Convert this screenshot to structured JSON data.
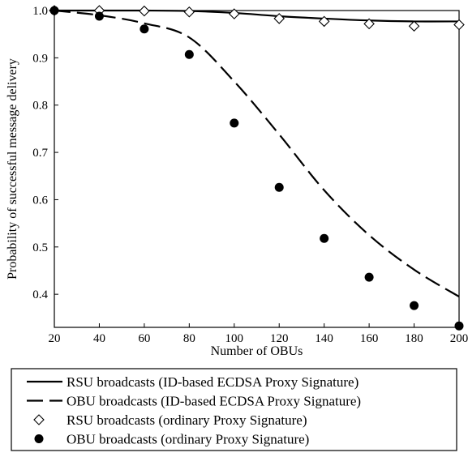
{
  "chart_data": {
    "type": "line",
    "xlabel": "Number of OBUs",
    "ylabel": "Probability of successful message delivery",
    "xlim": [
      20,
      200
    ],
    "ylim": [
      0.33,
      1.0
    ],
    "x_ticks": [
      20,
      40,
      60,
      80,
      100,
      120,
      140,
      160,
      180,
      200
    ],
    "y_ticks": [
      0.4,
      0.5,
      0.6,
      0.7,
      0.8,
      0.9,
      1.0
    ],
    "x_tick_labels": [
      "20",
      "40",
      "60",
      "80",
      "100",
      "120",
      "140",
      "160",
      "180",
      "200"
    ],
    "y_tick_labels": [
      "0.4",
      "0.5",
      "0.6",
      "0.7",
      "0.8",
      "0.9",
      "1.0"
    ],
    "grid": false,
    "legend_position": "below",
    "series": [
      {
        "name": "RSU broadcasts (ID-based ECDSA Proxy Signature)",
        "style": "solid-line",
        "x": [
          20,
          40,
          60,
          80,
          100,
          120,
          140,
          160,
          180,
          200
        ],
        "y": [
          1.0,
          1.0,
          1.0,
          0.999,
          0.995,
          0.988,
          0.983,
          0.979,
          0.977,
          0.977
        ]
      },
      {
        "name": "OBU broadcasts (ID-based ECDSA Proxy Signature)",
        "style": "dashed-line",
        "x": [
          20,
          40,
          60,
          80,
          100,
          120,
          140,
          160,
          180,
          200
        ],
        "y": [
          1.0,
          0.99,
          0.973,
          0.943,
          0.85,
          0.738,
          0.62,
          0.525,
          0.452,
          0.395
        ]
      },
      {
        "name": "RSU broadcasts (ordinary Proxy Signature)",
        "style": "open-diamond",
        "x": [
          20,
          40,
          60,
          80,
          100,
          120,
          140,
          160,
          180,
          200
        ],
        "y": [
          1.0,
          1.0,
          0.999,
          0.997,
          0.993,
          0.983,
          0.977,
          0.972,
          0.967,
          0.97
        ]
      },
      {
        "name": "OBU broadcasts (ordinary Proxy Signature)",
        "style": "filled-circle",
        "x": [
          20,
          40,
          60,
          80,
          100,
          120,
          140,
          160,
          180,
          200
        ],
        "y": [
          1.0,
          0.988,
          0.961,
          0.907,
          0.762,
          0.626,
          0.518,
          0.436,
          0.376,
          0.333
        ]
      }
    ]
  }
}
